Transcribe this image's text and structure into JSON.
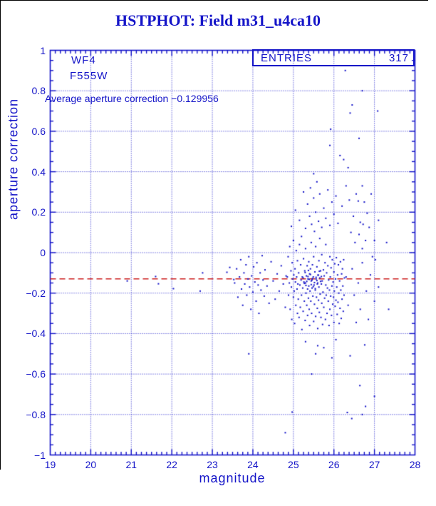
{
  "page": {
    "title": "HSTPHOT: Field m31_u4ca10"
  },
  "colors": {
    "plot_blue": "#1414c8",
    "avg_line_red": "#cc2020",
    "window_edge_black": "#000000",
    "background": "#ffffff"
  },
  "annotations": {
    "camera": "WF4",
    "filter": "F555W",
    "average_label": "Average aperture correction −0.129956",
    "average_value": -0.129956
  },
  "stats_box": {
    "label": "ENTRIES",
    "value": "317"
  },
  "chart_data": {
    "type": "scatter",
    "title": "HSTPHOT: Field m31_u4ca10",
    "xlabel": "magnitude",
    "ylabel": "aperture correction",
    "xlim": [
      19,
      28
    ],
    "ylim": [
      -1,
      1
    ],
    "x_tick_values": [
      19,
      20,
      21,
      22,
      23,
      24,
      25,
      26,
      27,
      28
    ],
    "x_tick_labels": [
      "19",
      "20",
      "21",
      "22",
      "23",
      "24",
      "25",
      "26",
      "27",
      "28"
    ],
    "y_tick_values": [
      1,
      0.8,
      0.6,
      0.4,
      0.2,
      0,
      -0.2,
      -0.4,
      -0.6,
      -0.8,
      -1
    ],
    "y_tick_labels": [
      "1",
      "0.8",
      "0.6",
      "0.4",
      "0.2",
      "0",
      "−0.2",
      "−0.4",
      "−0.6",
      "−0.8",
      "−1"
    ],
    "x_minor_step": 0.125,
    "y_minor_step": 0.05,
    "grid": true,
    "legend": "none",
    "entries": 317,
    "average_line_y": -0.129956,
    "points": [
      [
        20.9,
        -0.14
      ],
      [
        21.6,
        -0.118
      ],
      [
        21.67,
        -0.154
      ],
      [
        22.04,
        -0.178
      ],
      [
        22.7,
        -0.19
      ],
      [
        22.76,
        -0.1
      ],
      [
        23.36,
        -0.097
      ],
      [
        23.43,
        -0.073
      ],
      [
        23.53,
        -0.133
      ],
      [
        23.55,
        -0.15
      ],
      [
        23.6,
        -0.08
      ],
      [
        23.63,
        -0.22
      ],
      [
        23.67,
        -0.12
      ],
      [
        23.7,
        -0.035
      ],
      [
        23.72,
        -0.18
      ],
      [
        23.75,
        -0.26
      ],
      [
        23.78,
        -0.1
      ],
      [
        23.8,
        -0.155
      ],
      [
        23.83,
        -0.06
      ],
      [
        23.85,
        -0.21
      ],
      [
        23.88,
        -0.13
      ],
      [
        23.9,
        -0.02
      ],
      [
        23.92,
        -0.17
      ],
      [
        23.95,
        -0.28
      ],
      [
        23.97,
        -0.115
      ],
      [
        24.0,
        -0.195
      ],
      [
        24.02,
        -0.07
      ],
      [
        24.05,
        -0.145
      ],
      [
        24.08,
        -0.24
      ],
      [
        24.1,
        -0.05
      ],
      [
        24.13,
        -0.16
      ],
      [
        24.15,
        -0.3
      ],
      [
        24.18,
        -0.1
      ],
      [
        24.2,
        -0.185
      ],
      [
        24.23,
        -0.015
      ],
      [
        24.25,
        -0.135
      ],
      [
        24.28,
        -0.215
      ],
      [
        24.3,
        -0.085
      ],
      [
        24.35,
        -0.165
      ],
      [
        24.4,
        -0.25
      ],
      [
        24.45,
        -0.045
      ],
      [
        24.5,
        -0.14
      ],
      [
        24.55,
        -0.23
      ],
      [
        24.6,
        -0.105
      ],
      [
        24.65,
        -0.19
      ],
      [
        24.7,
        -0.065
      ],
      [
        24.75,
        -0.155
      ],
      [
        24.8,
        -0.27
      ],
      [
        24.82,
        -0.115
      ],
      [
        24.85,
        -0.12
      ],
      [
        24.87,
        -0.02
      ],
      [
        24.88,
        -0.21
      ],
      [
        24.9,
        -0.15
      ],
      [
        24.91,
        0.03
      ],
      [
        24.92,
        -0.28
      ],
      [
        24.94,
        -0.09
      ],
      [
        24.95,
        -0.17
      ],
      [
        24.96,
        -0.33
      ],
      [
        24.97,
        -0.05
      ],
      [
        24.98,
        -0.13
      ],
      [
        25.0,
        -0.22
      ],
      [
        25.0,
        0.06
      ],
      [
        25.01,
        -0.11
      ],
      [
        25.02,
        -0.19
      ],
      [
        25.03,
        -0.35
      ],
      [
        25.04,
        -0.08
      ],
      [
        25.05,
        -0.145
      ],
      [
        25.06,
        -0.26
      ],
      [
        25.07,
        0.01
      ],
      [
        25.08,
        -0.12
      ],
      [
        25.09,
        -0.18
      ],
      [
        25.1,
        -0.3
      ],
      [
        25.1,
        -0.04
      ],
      [
        25.11,
        -0.155
      ],
      [
        25.12,
        -0.23
      ],
      [
        25.13,
        -0.1
      ],
      [
        25.14,
        -0.32
      ],
      [
        25.15,
        0.04
      ],
      [
        25.16,
        -0.16
      ],
      [
        25.17,
        -0.27
      ],
      [
        25.18,
        -0.06
      ],
      [
        25.19,
        -0.135
      ],
      [
        25.2,
        -0.21
      ],
      [
        25.2,
        0.08
      ],
      [
        25.21,
        -0.38
      ],
      [
        25.22,
        -0.12
      ],
      [
        25.23,
        -0.175
      ],
      [
        25.24,
        -0.29
      ],
      [
        25.25,
        -0.03
      ],
      [
        25.26,
        -0.145
      ],
      [
        25.27,
        -0.24
      ],
      [
        25.28,
        -0.09
      ],
      [
        25.29,
        -0.335
      ],
      [
        25.3,
        -0.15
      ],
      [
        25.3,
        0.02
      ],
      [
        25.31,
        -0.2
      ],
      [
        25.32,
        -0.115
      ],
      [
        25.33,
        -0.26
      ],
      [
        25.34,
        -0.065
      ],
      [
        25.35,
        -0.18
      ],
      [
        25.35,
        -0.31
      ],
      [
        25.36,
        -0.13
      ],
      [
        25.37,
        -0.225
      ],
      [
        25.38,
        -0.045
      ],
      [
        25.38,
        -0.165
      ],
      [
        25.39,
        -0.28
      ],
      [
        25.4,
        -0.105
      ],
      [
        25.4,
        -0.36
      ],
      [
        25.41,
        -0.19
      ],
      [
        25.42,
        -0.08
      ],
      [
        25.43,
        -0.24
      ],
      [
        25.44,
        -0.14
      ],
      [
        25.44,
        0.05
      ],
      [
        25.45,
        -0.3
      ],
      [
        25.46,
        -0.175
      ],
      [
        25.47,
        -0.06
      ],
      [
        25.48,
        -0.215
      ],
      [
        25.49,
        -0.12
      ],
      [
        25.5,
        -0.34
      ],
      [
        25.5,
        -0.02
      ],
      [
        25.51,
        -0.16
      ],
      [
        25.52,
        -0.255
      ],
      [
        25.53,
        -0.095
      ],
      [
        25.54,
        -0.185
      ],
      [
        25.55,
        -0.315
      ],
      [
        25.55,
        0.03
      ],
      [
        25.56,
        -0.13
      ],
      [
        25.57,
        -0.22
      ],
      [
        25.58,
        -0.07
      ],
      [
        25.59,
        -0.275
      ],
      [
        25.6,
        -0.15
      ],
      [
        25.6,
        -0.375
      ],
      [
        25.61,
        -0.11
      ],
      [
        25.62,
        -0.235
      ],
      [
        25.63,
        -0.04
      ],
      [
        25.63,
        -0.17
      ],
      [
        25.64,
        -0.295
      ],
      [
        25.65,
        -0.125
      ],
      [
        25.65,
        0.07
      ],
      [
        25.66,
        -0.205
      ],
      [
        25.67,
        -0.09
      ],
      [
        25.68,
        -0.32
      ],
      [
        25.69,
        -0.155
      ],
      [
        25.7,
        -0.25
      ],
      [
        25.7,
        -0.01
      ],
      [
        25.71,
        -0.14
      ],
      [
        25.72,
        -0.355
      ],
      [
        25.73,
        -0.195
      ],
      [
        25.74,
        -0.085
      ],
      [
        25.75,
        -0.27
      ],
      [
        25.76,
        -0.115
      ],
      [
        25.77,
        -0.225
      ],
      [
        25.78,
        -0.05
      ],
      [
        25.79,
        -0.33
      ],
      [
        25.8,
        -0.16
      ],
      [
        25.8,
        0.04
      ],
      [
        25.81,
        -0.21
      ],
      [
        25.82,
        -0.1
      ],
      [
        25.83,
        -0.3
      ],
      [
        25.84,
        -0.175
      ],
      [
        25.85,
        -0.065
      ],
      [
        25.86,
        -0.24
      ],
      [
        25.87,
        -0.135
      ],
      [
        25.88,
        -0.36
      ],
      [
        25.89,
        -0.185
      ],
      [
        25.9,
        -0.02
      ],
      [
        25.9,
        -0.28
      ],
      [
        25.91,
        -0.12
      ],
      [
        25.92,
        -0.215
      ],
      [
        25.93,
        -0.075
      ],
      [
        25.94,
        -0.31
      ],
      [
        25.95,
        -0.165
      ],
      [
        25.96,
        -0.035
      ],
      [
        25.97,
        -0.255
      ],
      [
        25.98,
        -0.145
      ],
      [
        25.99,
        -0.22
      ],
      [
        26.0,
        -0.095
      ],
      [
        26.0,
        -0.345
      ],
      [
        26.01,
        -0.19
      ],
      [
        26.02,
        -0.055
      ],
      [
        26.03,
        -0.265
      ],
      [
        26.04,
        -0.13
      ],
      [
        26.05,
        -0.235
      ],
      [
        26.06,
        -0.025
      ],
      [
        26.07,
        -0.17
      ],
      [
        26.08,
        -0.305
      ],
      [
        26.09,
        -0.11
      ],
      [
        26.1,
        -0.245
      ],
      [
        26.11,
        -0.06
      ],
      [
        26.12,
        -0.2
      ],
      [
        26.13,
        -0.35
      ],
      [
        26.14,
        -0.14
      ],
      [
        26.15,
        -0.275
      ],
      [
        26.16,
        -0.045
      ],
      [
        26.17,
        -0.185
      ],
      [
        26.18,
        -0.325
      ],
      [
        26.19,
        -0.105
      ],
      [
        26.2,
        -0.23
      ],
      [
        26.21,
        -0.08
      ],
      [
        26.22,
        -0.165
      ],
      [
        26.23,
        -0.29
      ],
      [
        26.24,
        -0.035
      ],
      [
        26.25,
        -0.21
      ],
      [
        26.26,
        -0.125
      ],
      [
        25.33,
        -0.142
      ],
      [
        25.47,
        -0.128
      ],
      [
        25.52,
        -0.148
      ],
      [
        25.36,
        -0.118
      ],
      [
        25.58,
        -0.138
      ],
      [
        25.44,
        -0.158
      ],
      [
        25.29,
        -0.098
      ],
      [
        25.61,
        -0.112
      ],
      [
        25.39,
        -0.132
      ],
      [
        25.56,
        -0.122
      ],
      [
        25.49,
        -0.168
      ],
      [
        25.27,
        -0.152
      ],
      [
        25.64,
        -0.092
      ],
      [
        25.42,
        -0.108
      ],
      [
        25.54,
        -0.178
      ],
      [
        25.31,
        -0.162
      ],
      [
        25.67,
        -0.142
      ],
      [
        25.37,
        -0.088
      ],
      [
        25.59,
        -0.155
      ],
      [
        25.46,
        -0.135
      ],
      [
        25.24,
        -0.125
      ],
      [
        25.69,
        -0.118
      ],
      [
        24.95,
        0.13
      ],
      [
        25.05,
        0.21
      ],
      [
        25.15,
        0.16
      ],
      [
        25.25,
        0.3
      ],
      [
        25.3,
        0.12
      ],
      [
        25.35,
        0.24
      ],
      [
        25.4,
        0.18
      ],
      [
        25.42,
        0.32
      ],
      [
        25.45,
        0.14
      ],
      [
        25.5,
        0.27
      ],
      [
        25.52,
        0.105
      ],
      [
        25.55,
        0.2
      ],
      [
        25.58,
        0.35
      ],
      [
        25.62,
        0.155
      ],
      [
        25.65,
        0.29
      ],
      [
        25.7,
        0.125
      ],
      [
        25.75,
        0.22
      ],
      [
        25.8,
        0.17
      ],
      [
        25.85,
        0.31
      ],
      [
        25.9,
        0.135
      ],
      [
        25.95,
        0.25
      ],
      [
        26.0,
        0.19
      ],
      [
        26.05,
        0.28
      ],
      [
        26.1,
        0.145
      ],
      [
        26.2,
        0.23
      ],
      [
        26.28,
        0.9
      ],
      [
        26.7,
        0.8
      ],
      [
        26.45,
        0.73
      ],
      [
        26.4,
        0.69
      ],
      [
        27.08,
        0.7
      ],
      [
        25.92,
        0.61
      ],
      [
        25.9,
        0.53
      ],
      [
        26.15,
        0.48
      ],
      [
        26.24,
        0.46
      ],
      [
        26.62,
        0.565
      ],
      [
        26.35,
        0.42
      ],
      [
        25.5,
        0.39
      ],
      [
        26.3,
        0.33
      ],
      [
        26.38,
        0.26
      ],
      [
        26.42,
        0.1
      ],
      [
        26.48,
        0.18
      ],
      [
        26.52,
        0.05
      ],
      [
        26.55,
        0.29
      ],
      [
        26.6,
        0.255
      ],
      [
        26.62,
        0.09
      ],
      [
        26.65,
        0.15
      ],
      [
        26.7,
        0.33
      ],
      [
        26.7,
        0.02
      ],
      [
        26.72,
        0.14
      ],
      [
        26.75,
        0.25
      ],
      [
        26.78,
        0.06
      ],
      [
        26.82,
        0.195
      ],
      [
        26.87,
        0.125
      ],
      [
        26.92,
        0.29
      ],
      [
        26.95,
        -0.02
      ],
      [
        27.0,
        0.06
      ],
      [
        27.02,
        -0.035
      ],
      [
        27.1,
        0.16
      ],
      [
        27.3,
        0.05
      ],
      [
        26.3,
        -0.12
      ],
      [
        26.35,
        -0.26
      ],
      [
        26.4,
        -0.51
      ],
      [
        26.45,
        -0.08
      ],
      [
        26.5,
        -0.21
      ],
      [
        26.55,
        -0.345
      ],
      [
        26.6,
        -0.15
      ],
      [
        26.65,
        -0.28
      ],
      [
        26.7,
        -0.05
      ],
      [
        26.76,
        -0.456
      ],
      [
        26.8,
        -0.19
      ],
      [
        26.85,
        -0.33
      ],
      [
        26.9,
        -0.11
      ],
      [
        27.0,
        -0.24
      ],
      [
        27.1,
        -0.17
      ],
      [
        27.35,
        -0.28
      ],
      [
        23.9,
        -0.5
      ],
      [
        24.8,
        -0.89
      ],
      [
        24.97,
        -0.788
      ],
      [
        26.33,
        -0.79
      ],
      [
        26.44,
        -0.82
      ],
      [
        26.64,
        -0.657
      ],
      [
        26.7,
        -0.8
      ],
      [
        26.78,
        -0.76
      ],
      [
        27.0,
        -0.71
      ],
      [
        25.45,
        -0.6
      ],
      [
        25.6,
        -0.46
      ],
      [
        25.3,
        -0.44
      ],
      [
        25.55,
        -0.5
      ],
      [
        25.75,
        -0.47
      ],
      [
        26.05,
        -0.43
      ],
      [
        25.95,
        -0.52
      ]
    ]
  }
}
